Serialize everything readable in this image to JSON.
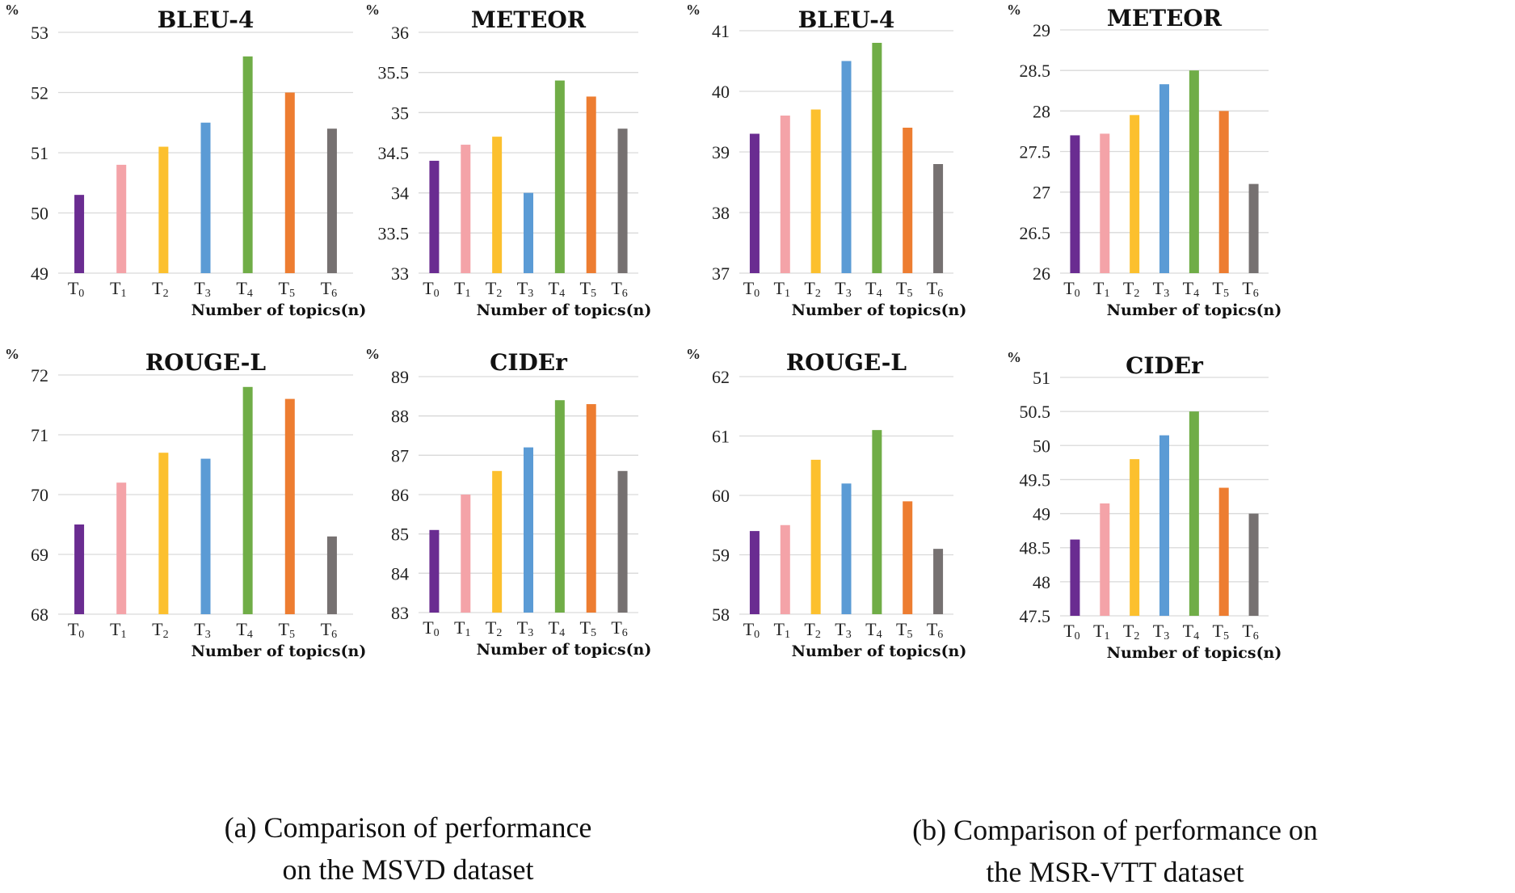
{
  "colors": [
    "#6a2c91",
    "#f4a3a8",
    "#fcc02e",
    "#5b9bd5",
    "#70ad47",
    "#ed7d31",
    "#767171"
  ],
  "captions": {
    "a": {
      "line1": "(a) Comparison of performance",
      "line2": "on the MSVD dataset"
    },
    "b": {
      "line1": "(b) Comparison of performance on",
      "line2": "the MSR-VTT dataset"
    }
  },
  "chart_data": [
    {
      "id": "msvd-bleu4",
      "type": "bar",
      "dataset": "MSVD",
      "title": "BLEU-4",
      "unit": "%",
      "xlabel": "Number of topics(n)",
      "ylabel": "%",
      "categories": [
        "T0",
        "T1",
        "T2",
        "T3",
        "T4",
        "T5",
        "T6"
      ],
      "values": [
        50.3,
        50.8,
        51.1,
        51.5,
        52.6,
        52.0,
        51.4
      ],
      "ylim": [
        49,
        53
      ],
      "ystep": 1,
      "yticks": [
        "49",
        "50",
        "51",
        "52",
        "53"
      ],
      "grid": true
    },
    {
      "id": "msvd-meteor",
      "type": "bar",
      "dataset": "MSVD",
      "title": "METEOR",
      "unit": "%",
      "xlabel": "Number of topics(n)",
      "ylabel": "%",
      "categories": [
        "T0",
        "T1",
        "T2",
        "T3",
        "T4",
        "T5",
        "T6"
      ],
      "values": [
        34.4,
        34.6,
        34.7,
        34.0,
        35.4,
        35.2,
        34.8
      ],
      "ylim": [
        33,
        36
      ],
      "ystep": 0.5,
      "yticks": [
        "33",
        "33.5",
        "34",
        "34.5",
        "35",
        "35.5",
        "36"
      ],
      "grid": true
    },
    {
      "id": "msrvtt-bleu4",
      "type": "bar",
      "dataset": "MSR-VTT",
      "title": "BLEU-4",
      "unit": "%",
      "xlabel": "Number of topics(n)",
      "ylabel": "%",
      "categories": [
        "T0",
        "T1",
        "T2",
        "T3",
        "T4",
        "T5",
        "T6"
      ],
      "values": [
        39.3,
        39.6,
        39.7,
        40.5,
        40.8,
        39.4,
        38.8
      ],
      "ylim": [
        37,
        41
      ],
      "ystep": 1,
      "yticks": [
        "37",
        "38",
        "39",
        "40",
        "41"
      ],
      "grid": true
    },
    {
      "id": "msrvtt-meteor",
      "type": "bar",
      "dataset": "MSR-VTT",
      "title": "METEOR",
      "unit": "%",
      "xlabel": "Number of topics(n)",
      "ylabel": "%",
      "categories": [
        "T0",
        "T1",
        "T2",
        "T3",
        "T4",
        "T5",
        "T6"
      ],
      "values": [
        27.7,
        27.72,
        27.95,
        28.33,
        28.5,
        28.0,
        27.1
      ],
      "ylim": [
        26,
        29
      ],
      "ystep": 0.5,
      "yticks": [
        "26",
        "26.5",
        "27",
        "27.5",
        "28",
        "28.5",
        "29"
      ],
      "grid": true
    },
    {
      "id": "msvd-rougel",
      "type": "bar",
      "dataset": "MSVD",
      "title": "ROUGE-L",
      "unit": "%",
      "xlabel": "Number of topics(n)",
      "ylabel": "%",
      "categories": [
        "T0",
        "T1",
        "T2",
        "T3",
        "T4",
        "T5",
        "T6"
      ],
      "values": [
        69.5,
        70.2,
        70.7,
        70.6,
        71.8,
        71.6,
        69.3
      ],
      "ylim": [
        68,
        72
      ],
      "ystep": 1,
      "yticks": [
        "68",
        "69",
        "70",
        "71",
        "72"
      ],
      "grid": true
    },
    {
      "id": "msvd-cider",
      "type": "bar",
      "dataset": "MSVD",
      "title": "CIDEr",
      "unit": "%",
      "xlabel": "Number of topics(n)",
      "ylabel": "%",
      "categories": [
        "T0",
        "T1",
        "T2",
        "T3",
        "T4",
        "T5",
        "T6"
      ],
      "values": [
        85.1,
        86.0,
        86.6,
        87.2,
        88.4,
        88.3,
        86.6
      ],
      "ylim": [
        83,
        89
      ],
      "ystep": 1,
      "yticks": [
        "83",
        "84",
        "85",
        "86",
        "87",
        "88",
        "89"
      ],
      "grid": true
    },
    {
      "id": "msrvtt-rougel",
      "type": "bar",
      "dataset": "MSR-VTT",
      "title": "ROUGE-L",
      "unit": "%",
      "xlabel": "Number of topics(n)",
      "ylabel": "%",
      "categories": [
        "T0",
        "T1",
        "T2",
        "T3",
        "T4",
        "T5",
        "T6"
      ],
      "values": [
        59.4,
        59.5,
        60.6,
        60.2,
        61.1,
        59.9,
        59.1
      ],
      "ylim": [
        58,
        62
      ],
      "ystep": 1,
      "yticks": [
        "58",
        "59",
        "60",
        "61",
        "62"
      ],
      "grid": true
    },
    {
      "id": "msrvtt-cider",
      "type": "bar",
      "dataset": "MSR-VTT",
      "title": "CIDEr",
      "unit": "%",
      "xlabel": "Number of topics(n)",
      "ylabel": "%",
      "categories": [
        "T0",
        "T1",
        "T2",
        "T3",
        "T4",
        "T5",
        "T6"
      ],
      "values": [
        48.62,
        49.15,
        49.8,
        50.15,
        50.5,
        49.38,
        49.0
      ],
      "ylim": [
        47.5,
        51
      ],
      "ystep": 0.5,
      "yticks": [
        "47.5",
        "48",
        "48.5",
        "49",
        "49.5",
        "50",
        "50.5",
        "51"
      ],
      "grid": true
    }
  ]
}
